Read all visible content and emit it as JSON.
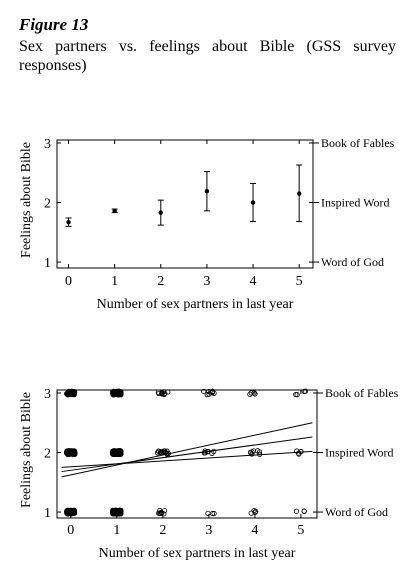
{
  "figure": {
    "label": "Figure 13",
    "caption": "Sex partners vs. feelings about Bible (GSS survey responses)"
  },
  "chart_data": [
    {
      "type": "scatter",
      "subtype": "error-bar",
      "xlabel": "Number of sex partners in last year",
      "ylabel": "Feelings about Bible",
      "x_ticks": [
        0,
        1,
        2,
        3,
        4,
        5
      ],
      "y_ticks": [
        1,
        2,
        3
      ],
      "xlim": [
        -0.25,
        5.3
      ],
      "ylim": [
        0.9,
        3.05
      ],
      "right_axis_labels": [
        {
          "y": 3,
          "label": "Book of Fables"
        },
        {
          "y": 2,
          "label": "Inspired Word"
        },
        {
          "y": 1,
          "label": "Word of God"
        }
      ],
      "points": [
        {
          "x": 0,
          "y": 1.67,
          "low": 1.6,
          "high": 1.74
        },
        {
          "x": 1,
          "y": 1.86,
          "low": 1.83,
          "high": 1.89
        },
        {
          "x": 2,
          "y": 1.83,
          "low": 1.62,
          "high": 2.04
        },
        {
          "x": 3,
          "y": 2.19,
          "low": 1.86,
          "high": 2.52
        },
        {
          "x": 4,
          "y": 2.0,
          "low": 1.68,
          "high": 2.32
        },
        {
          "x": 5,
          "y": 2.15,
          "low": 1.68,
          "high": 2.63
        }
      ]
    },
    {
      "type": "scatter",
      "subtype": "jittered-with-lines",
      "xlabel": "Number of sex partners in last year",
      "ylabel": "Feelings about Bible",
      "x_ticks": [
        0,
        1,
        2,
        3,
        4,
        5
      ],
      "y_ticks": [
        1,
        2,
        3
      ],
      "xlim": [
        -0.3,
        5.35
      ],
      "ylim": [
        0.9,
        3.05
      ],
      "right_axis_labels": [
        {
          "y": 3,
          "label": "Book of Fables"
        },
        {
          "y": 2,
          "label": "Inspired Word"
        },
        {
          "y": 1,
          "label": "Word of God"
        }
      ],
      "point_counts": [
        {
          "x": 0,
          "y": 1,
          "n": 90
        },
        {
          "x": 1,
          "y": 1,
          "n": 220
        },
        {
          "x": 2,
          "y": 1,
          "n": 8
        },
        {
          "x": 3,
          "y": 1,
          "n": 3
        },
        {
          "x": 4,
          "y": 1,
          "n": 4
        },
        {
          "x": 5,
          "y": 1,
          "n": 3
        },
        {
          "x": 0,
          "y": 2,
          "n": 120
        },
        {
          "x": 1,
          "y": 2,
          "n": 300
        },
        {
          "x": 2,
          "y": 2,
          "n": 14
        },
        {
          "x": 3,
          "y": 2,
          "n": 7
        },
        {
          "x": 4,
          "y": 2,
          "n": 7
        },
        {
          "x": 5,
          "y": 2,
          "n": 5
        },
        {
          "x": 0,
          "y": 3,
          "n": 40
        },
        {
          "x": 1,
          "y": 3,
          "n": 110
        },
        {
          "x": 2,
          "y": 3,
          "n": 9
        },
        {
          "x": 3,
          "y": 3,
          "n": 8
        },
        {
          "x": 4,
          "y": 3,
          "n": 4
        },
        {
          "x": 5,
          "y": 3,
          "n": 4
        }
      ],
      "lines": [
        {
          "x": [
            -0.2,
            5.25
          ],
          "y": [
            1.59,
            2.5
          ]
        },
        {
          "x": [
            -0.2,
            5.25
          ],
          "y": [
            1.68,
            2.26
          ]
        },
        {
          "x": [
            -0.2,
            5.25
          ],
          "y": [
            1.75,
            2.02
          ]
        }
      ]
    }
  ]
}
